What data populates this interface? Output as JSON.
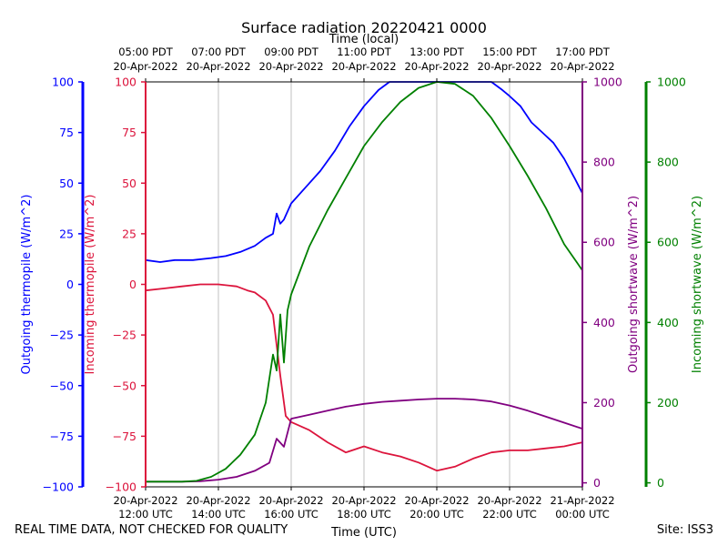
{
  "title": "Surface radiation 20220421 0000",
  "footer_left": "REAL TIME DATA, NOT CHECKED FOR QUALITY",
  "footer_right": "Site: ISS3",
  "colors": {
    "outgoing_thermopile": "#0000ff",
    "incoming_thermopile": "#dc143c",
    "outgoing_shortwave": "#800080",
    "incoming_shortwave": "#008000",
    "grid": "#b0b0b0"
  },
  "chart_data": {
    "type": "line",
    "title": "Surface radiation 20220421 0000",
    "xlabel_bottom": "Time (UTC)",
    "xlabel_top": "Time (local)",
    "xlim_utc_hours": [
      12,
      24
    ],
    "grid": true,
    "bottom_ticks": [
      {
        "x": 12,
        "label1": "20-Apr-2022",
        "label2": "12:00 UTC"
      },
      {
        "x": 14,
        "label1": "20-Apr-2022",
        "label2": "14:00 UTC"
      },
      {
        "x": 16,
        "label1": "20-Apr-2022",
        "label2": "16:00 UTC"
      },
      {
        "x": 18,
        "label1": "20-Apr-2022",
        "label2": "18:00 UTC"
      },
      {
        "x": 20,
        "label1": "20-Apr-2022",
        "label2": "20:00 UTC"
      },
      {
        "x": 22,
        "label1": "20-Apr-2022",
        "label2": "22:00 UTC"
      },
      {
        "x": 24,
        "label1": "21-Apr-2022",
        "label2": "00:00 UTC"
      }
    ],
    "top_ticks": [
      {
        "x": 12,
        "label1": "05:00 PDT",
        "label2": "20-Apr-2022"
      },
      {
        "x": 14,
        "label1": "07:00 PDT",
        "label2": "20-Apr-2022"
      },
      {
        "x": 16,
        "label1": "09:00 PDT",
        "label2": "20-Apr-2022"
      },
      {
        "x": 18,
        "label1": "11:00 PDT",
        "label2": "20-Apr-2022"
      },
      {
        "x": 20,
        "label1": "13:00 PDT",
        "label2": "20-Apr-2022"
      },
      {
        "x": 22,
        "label1": "15:00 PDT",
        "label2": "20-Apr-2022"
      },
      {
        "x": 24,
        "label1": "17:00 PDT",
        "label2": "20-Apr-2022"
      }
    ],
    "axes": {
      "outgoing_thermopile": {
        "label": "Outgoing thermopile (W/m^2)",
        "ylim": [
          -100,
          100
        ],
        "ticks": [
          -100,
          -75,
          -50,
          -25,
          0,
          25,
          50,
          75,
          100
        ]
      },
      "incoming_thermopile": {
        "label": "Incoming thermopile (W/m^2)",
        "ylim": [
          -100,
          100
        ],
        "ticks": [
          -100,
          -75,
          -50,
          -25,
          0,
          25,
          50,
          75,
          100
        ]
      },
      "outgoing_shortwave": {
        "label": "Outgoing shortwave (W/m^2)",
        "ylim": [
          -10,
          1000
        ],
        "ticks": [
          0,
          200,
          400,
          600,
          800,
          1000
        ]
      },
      "incoming_shortwave": {
        "label": "Incoming shortwave (W/m^2)",
        "ylim": [
          -10,
          1000
        ],
        "ticks": [
          0,
          200,
          400,
          600,
          800,
          1000
        ]
      }
    },
    "series": [
      {
        "name": "Outgoing thermopile (W/m^2)",
        "axis": "outgoing_thermopile",
        "color": "#0000ff",
        "x": [
          12.0,
          12.4,
          12.8,
          13.3,
          13.8,
          14.2,
          14.6,
          15.0,
          15.3,
          15.5,
          15.6,
          15.7,
          15.8,
          16.0,
          16.4,
          16.8,
          17.2,
          17.6,
          18.0,
          18.4,
          18.7,
          19.0,
          20.0,
          21.0,
          21.5,
          21.8,
          22.0,
          22.3,
          22.6,
          22.9,
          23.2,
          23.5,
          23.8,
          24.0
        ],
        "y": [
          12,
          11,
          12,
          12,
          13,
          14,
          16,
          19,
          23,
          25,
          35,
          30,
          32,
          40,
          48,
          56,
          66,
          78,
          88,
          96,
          100,
          100,
          100,
          100,
          100,
          96,
          93,
          88,
          80,
          75,
          70,
          62,
          52,
          45
        ]
      },
      {
        "name": "Incoming thermopile (W/m^2)",
        "axis": "incoming_thermopile",
        "color": "#dc143c",
        "x": [
          12.0,
          12.5,
          13.0,
          13.5,
          14.0,
          14.5,
          14.8,
          15.0,
          15.3,
          15.5,
          15.7,
          15.85,
          16.0,
          16.5,
          17.0,
          17.5,
          18.0,
          18.5,
          19.0,
          19.5,
          20.0,
          20.5,
          21.0,
          21.5,
          22.0,
          22.5,
          23.0,
          23.5,
          24.0
        ],
        "y": [
          -3,
          -2,
          -1,
          0,
          0,
          -1,
          -3,
          -4,
          -8,
          -15,
          -45,
          -65,
          -68,
          -72,
          -78,
          -83,
          -80,
          -83,
          -85,
          -88,
          -92,
          -90,
          -86,
          -83,
          -82,
          -82,
          -81,
          -80,
          -78
        ]
      },
      {
        "name": "Outgoing shortwave (W/m^2)",
        "axis": "outgoing_shortwave",
        "color": "#800080",
        "x": [
          12.0,
          13.0,
          13.5,
          14.0,
          14.5,
          15.0,
          15.4,
          15.6,
          15.8,
          16.0,
          16.5,
          17.0,
          17.5,
          18.0,
          18.5,
          19.0,
          19.5,
          20.0,
          20.5,
          21.0,
          21.5,
          22.0,
          22.5,
          23.0,
          23.5,
          24.0
        ],
        "y": [
          3,
          3,
          4,
          8,
          15,
          30,
          50,
          110,
          90,
          160,
          170,
          180,
          190,
          197,
          202,
          205,
          208,
          210,
          210,
          208,
          203,
          193,
          180,
          165,
          150,
          135
        ]
      },
      {
        "name": "Incoming shortwave (W/m^2)",
        "axis": "incoming_shortwave",
        "color": "#008000",
        "x": [
          12.0,
          13.0,
          13.4,
          13.8,
          14.2,
          14.6,
          15.0,
          15.3,
          15.5,
          15.6,
          15.7,
          15.8,
          15.9,
          16.0,
          16.5,
          17.0,
          17.5,
          18.0,
          18.5,
          19.0,
          19.5,
          20.0,
          20.5,
          21.0,
          21.5,
          22.0,
          22.5,
          23.0,
          23.5,
          24.0
        ],
        "y": [
          3,
          3,
          5,
          15,
          35,
          70,
          120,
          200,
          320,
          280,
          420,
          300,
          430,
          470,
          590,
          680,
          760,
          840,
          900,
          950,
          985,
          1000,
          995,
          965,
          910,
          840,
          765,
          685,
          595,
          530
        ]
      }
    ]
  }
}
